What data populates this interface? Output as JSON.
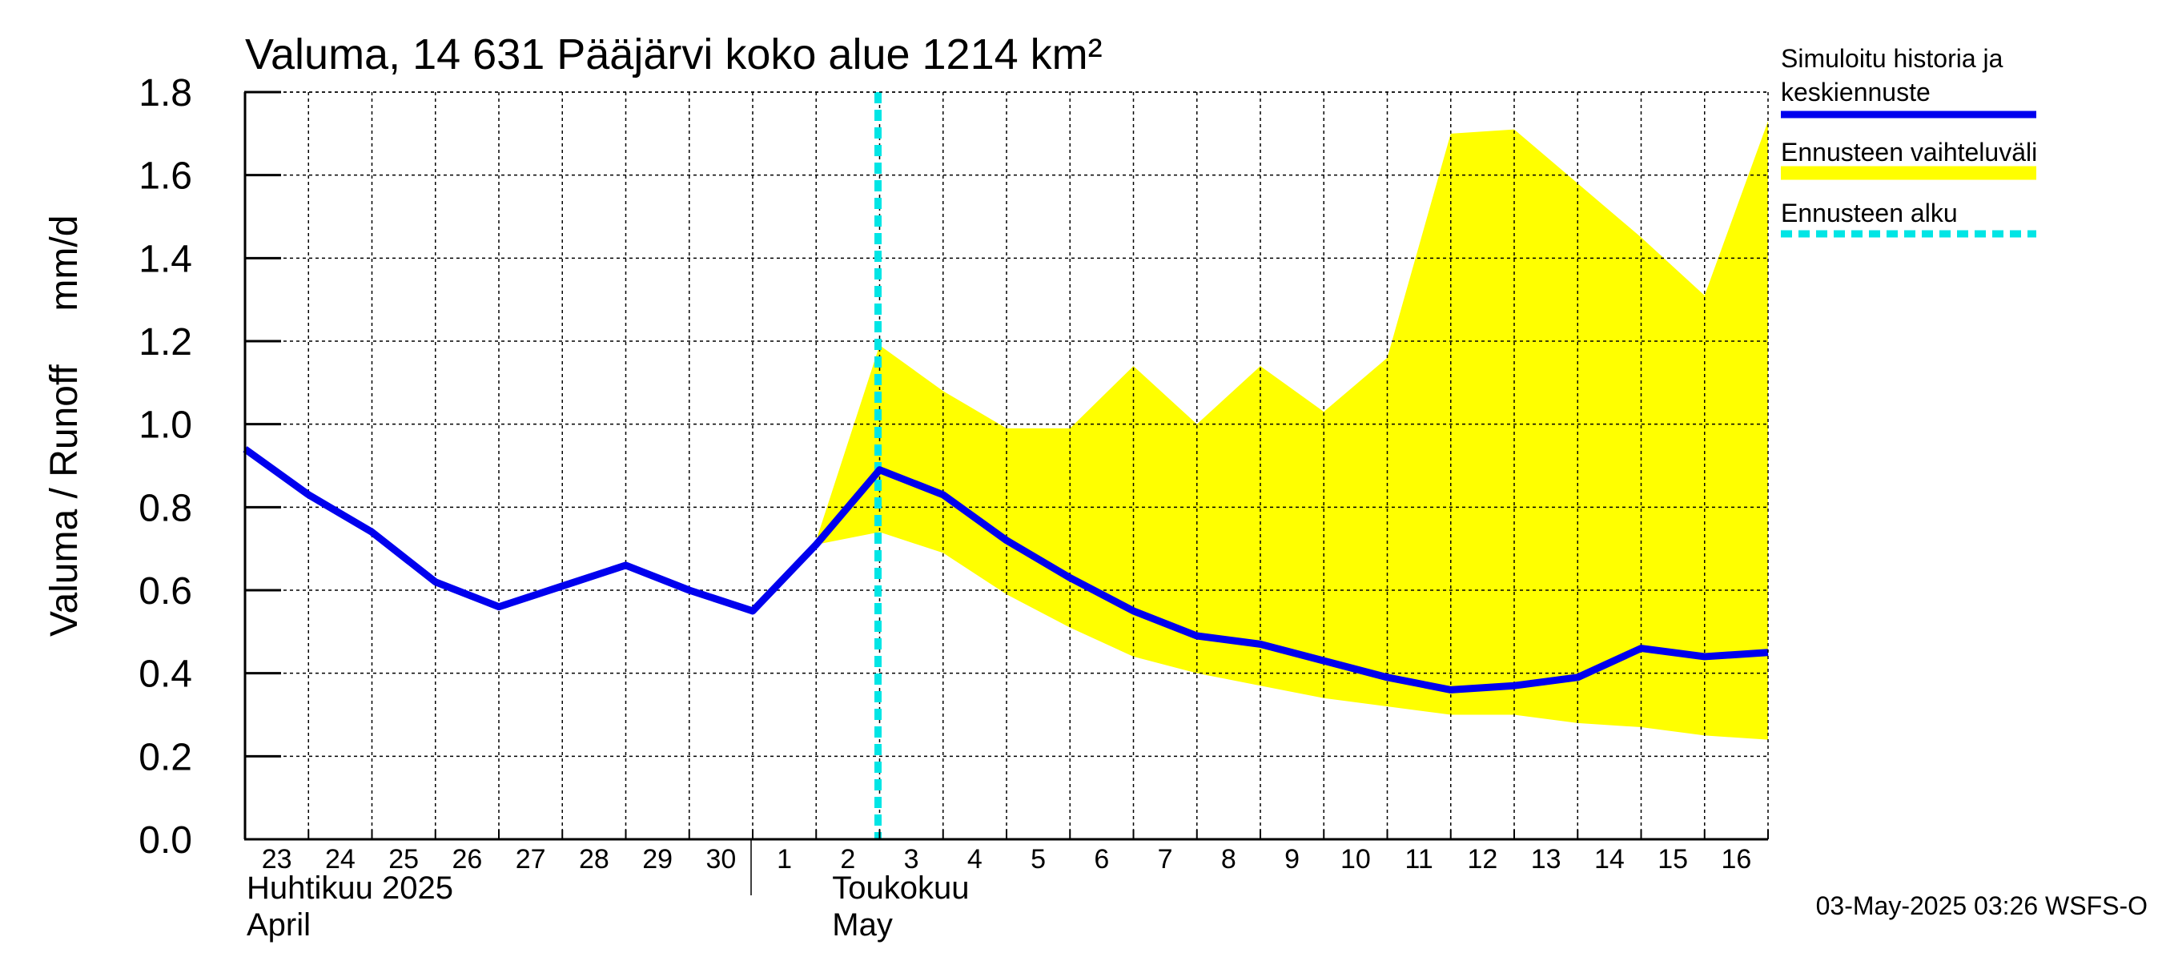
{
  "chart_data": {
    "type": "line",
    "title": "Valuma, 14 631 Pääjärvi koko alue 1214 km²",
    "ylabel": "Valuma / Runoff     mm/d",
    "ylim": [
      0.0,
      1.8
    ],
    "yticks": [
      "0.0",
      "0.2",
      "0.4",
      "0.6",
      "0.8",
      "1.0",
      "1.2",
      "1.4",
      "1.6",
      "1.8"
    ],
    "x_tick_labels": [
      "23",
      "24",
      "25",
      "26",
      "27",
      "28",
      "29",
      "30",
      "1",
      "2",
      "3",
      "4",
      "5",
      "6",
      "7",
      "8",
      "9",
      "10",
      "11",
      "12",
      "13",
      "14",
      "15",
      "16"
    ],
    "months": [
      {
        "line1": "Huhtikuu  2025",
        "line2": "April"
      },
      {
        "line1": "Toukokuu",
        "line2": "May"
      }
    ],
    "forecast_start_index": 10,
    "grid": true,
    "legend_position": "right",
    "series": [
      {
        "name": "Simuloitu historia ja keskiennuste",
        "color": "#0000ee",
        "values": [
          0.94,
          0.83,
          0.74,
          0.62,
          0.56,
          0.61,
          0.66,
          0.6,
          0.55,
          0.71,
          0.89,
          0.83,
          0.72,
          0.63,
          0.55,
          0.49,
          0.47,
          0.43,
          0.39,
          0.36,
          0.37,
          0.39,
          0.46,
          0.44,
          0.45
        ]
      }
    ],
    "band": {
      "name": "Ennusteen vaihteluväli",
      "color": "#ffff00",
      "x_start": 9,
      "upper": [
        0.72,
        1.19,
        1.08,
        0.99,
        0.99,
        1.14,
        1.0,
        1.14,
        1.03,
        1.16,
        1.7,
        1.71,
        1.58,
        1.45,
        1.31,
        1.73
      ],
      "lower": [
        0.71,
        0.74,
        0.69,
        0.59,
        0.51,
        0.44,
        0.4,
        0.37,
        0.34,
        0.32,
        0.3,
        0.3,
        0.28,
        0.27,
        0.25,
        0.24
      ]
    },
    "legend": [
      {
        "label_lines": [
          "Simuloitu historia ja",
          "keskiennuste"
        ],
        "color": "#0000ee",
        "style": "solid"
      },
      {
        "label_lines": [
          "Ennusteen vaihteluväli"
        ],
        "color": "#ffff00",
        "style": "band"
      },
      {
        "label_lines": [
          "Ennusteen alku"
        ],
        "color": "#00e5e5",
        "style": "dashed"
      }
    ],
    "timestamp": "03-May-2025 03:26 WSFS-O"
  }
}
